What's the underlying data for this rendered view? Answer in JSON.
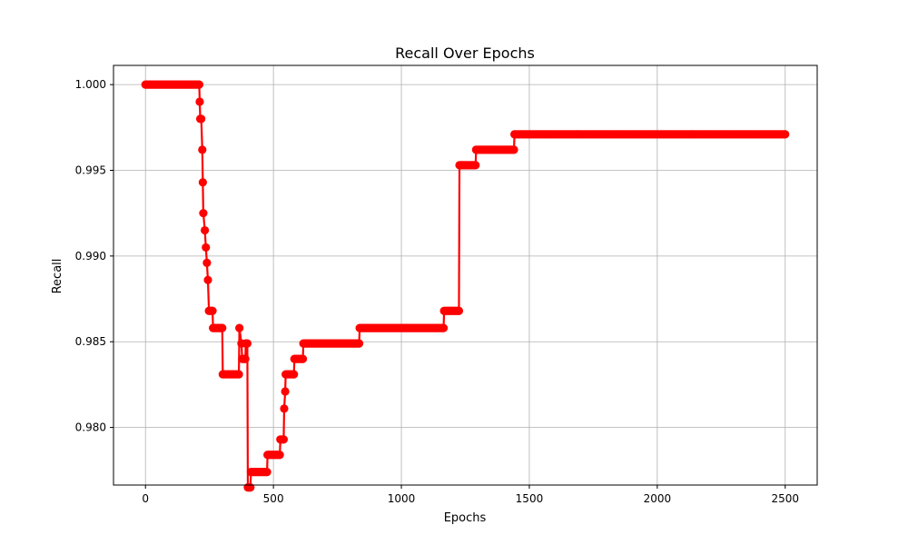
{
  "chart_data": {
    "type": "line",
    "title": "Recall Over Epochs",
    "xlabel": "Epochs",
    "ylabel": "Recall",
    "xlim": [
      -125,
      2625
    ],
    "ylim": [
      0.97664,
      1.00112
    ],
    "xticks": [
      0,
      500,
      1000,
      1500,
      2000,
      2500
    ],
    "yticks": [
      0.98,
      0.985,
      0.99,
      0.995,
      1.0
    ],
    "ytick_labels": [
      "0.980",
      "0.985",
      "0.990",
      "0.995",
      "1.000"
    ],
    "xtick_labels": [
      "0",
      "500",
      "1000",
      "1500",
      "2000",
      "2500"
    ],
    "grid": true,
    "color": "#ff0000",
    "marker": "circle",
    "series": [
      {
        "x": [
          0,
          210,
          212,
          214,
          218,
          222,
          224,
          226,
          232,
          236,
          240,
          244,
          248,
          262,
          264,
          300,
          302,
          305,
          365,
          367,
          375,
          378,
          390,
          392,
          394,
          398,
          400,
          402,
          410,
          412,
          475,
          477,
          525,
          527,
          540,
          542,
          546,
          548,
          580,
          582,
          615,
          617,
          835,
          837,
          1165,
          1167,
          1225,
          1227,
          1290,
          1292,
          1440,
          1442,
          2500
        ],
        "y": [
          1.0,
          1.0,
          0.999,
          0.998,
          0.998,
          0.9962,
          0.9943,
          0.9925,
          0.9915,
          0.9905,
          0.9896,
          0.9886,
          0.9868,
          0.9868,
          0.9858,
          0.9858,
          0.9831,
          0.9831,
          0.9831,
          0.9858,
          0.9849,
          0.984,
          0.984,
          0.9849,
          0.9849,
          0.9849,
          0.9765,
          0.9765,
          0.9765,
          0.9774,
          0.9774,
          0.9784,
          0.9784,
          0.9793,
          0.9793,
          0.9811,
          0.9821,
          0.9831,
          0.9831,
          0.984,
          0.984,
          0.9849,
          0.9849,
          0.9858,
          0.9858,
          0.9868,
          0.9868,
          0.9953,
          0.9953,
          0.9962,
          0.9962,
          0.9971,
          0.9971
        ]
      }
    ]
  }
}
